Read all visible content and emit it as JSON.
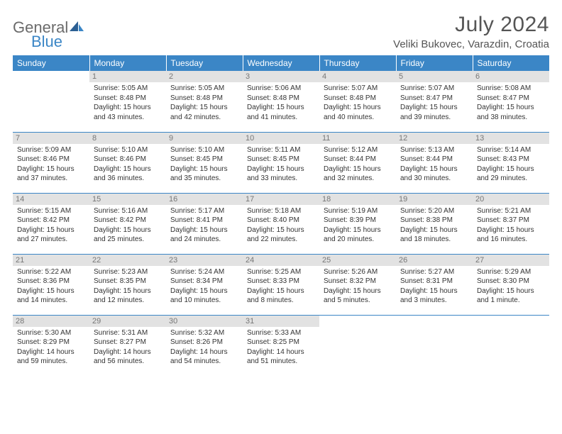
{
  "logo": {
    "text1": "General",
    "text2": "Blue"
  },
  "title": "July 2024",
  "location": "Veliki Bukovec, Varazdin, Croatia",
  "colors": {
    "header_bg": "#3b86c6",
    "header_text": "#ffffff",
    "daynum_bg": "#e2e2e2",
    "daynum_text": "#777777",
    "border": "#3b86c6",
    "logo_gray": "#6b6b6b",
    "logo_blue": "#3b86c6",
    "body_text": "#333333"
  },
  "weekdays": [
    "Sunday",
    "Monday",
    "Tuesday",
    "Wednesday",
    "Thursday",
    "Friday",
    "Saturday"
  ],
  "days": [
    {
      "n": "",
      "sr": "",
      "ss": "",
      "dl": ""
    },
    {
      "n": "1",
      "sr": "5:05 AM",
      "ss": "8:48 PM",
      "dl": "15 hours and 43 minutes."
    },
    {
      "n": "2",
      "sr": "5:05 AM",
      "ss": "8:48 PM",
      "dl": "15 hours and 42 minutes."
    },
    {
      "n": "3",
      "sr": "5:06 AM",
      "ss": "8:48 PM",
      "dl": "15 hours and 41 minutes."
    },
    {
      "n": "4",
      "sr": "5:07 AM",
      "ss": "8:48 PM",
      "dl": "15 hours and 40 minutes."
    },
    {
      "n": "5",
      "sr": "5:07 AM",
      "ss": "8:47 PM",
      "dl": "15 hours and 39 minutes."
    },
    {
      "n": "6",
      "sr": "5:08 AM",
      "ss": "8:47 PM",
      "dl": "15 hours and 38 minutes."
    },
    {
      "n": "7",
      "sr": "5:09 AM",
      "ss": "8:46 PM",
      "dl": "15 hours and 37 minutes."
    },
    {
      "n": "8",
      "sr": "5:10 AM",
      "ss": "8:46 PM",
      "dl": "15 hours and 36 minutes."
    },
    {
      "n": "9",
      "sr": "5:10 AM",
      "ss": "8:45 PM",
      "dl": "15 hours and 35 minutes."
    },
    {
      "n": "10",
      "sr": "5:11 AM",
      "ss": "8:45 PM",
      "dl": "15 hours and 33 minutes."
    },
    {
      "n": "11",
      "sr": "5:12 AM",
      "ss": "8:44 PM",
      "dl": "15 hours and 32 minutes."
    },
    {
      "n": "12",
      "sr": "5:13 AM",
      "ss": "8:44 PM",
      "dl": "15 hours and 30 minutes."
    },
    {
      "n": "13",
      "sr": "5:14 AM",
      "ss": "8:43 PM",
      "dl": "15 hours and 29 minutes."
    },
    {
      "n": "14",
      "sr": "5:15 AM",
      "ss": "8:42 PM",
      "dl": "15 hours and 27 minutes."
    },
    {
      "n": "15",
      "sr": "5:16 AM",
      "ss": "8:42 PM",
      "dl": "15 hours and 25 minutes."
    },
    {
      "n": "16",
      "sr": "5:17 AM",
      "ss": "8:41 PM",
      "dl": "15 hours and 24 minutes."
    },
    {
      "n": "17",
      "sr": "5:18 AM",
      "ss": "8:40 PM",
      "dl": "15 hours and 22 minutes."
    },
    {
      "n": "18",
      "sr": "5:19 AM",
      "ss": "8:39 PM",
      "dl": "15 hours and 20 minutes."
    },
    {
      "n": "19",
      "sr": "5:20 AM",
      "ss": "8:38 PM",
      "dl": "15 hours and 18 minutes."
    },
    {
      "n": "20",
      "sr": "5:21 AM",
      "ss": "8:37 PM",
      "dl": "15 hours and 16 minutes."
    },
    {
      "n": "21",
      "sr": "5:22 AM",
      "ss": "8:36 PM",
      "dl": "15 hours and 14 minutes."
    },
    {
      "n": "22",
      "sr": "5:23 AM",
      "ss": "8:35 PM",
      "dl": "15 hours and 12 minutes."
    },
    {
      "n": "23",
      "sr": "5:24 AM",
      "ss": "8:34 PM",
      "dl": "15 hours and 10 minutes."
    },
    {
      "n": "24",
      "sr": "5:25 AM",
      "ss": "8:33 PM",
      "dl": "15 hours and 8 minutes."
    },
    {
      "n": "25",
      "sr": "5:26 AM",
      "ss": "8:32 PM",
      "dl": "15 hours and 5 minutes."
    },
    {
      "n": "26",
      "sr": "5:27 AM",
      "ss": "8:31 PM",
      "dl": "15 hours and 3 minutes."
    },
    {
      "n": "27",
      "sr": "5:29 AM",
      "ss": "8:30 PM",
      "dl": "15 hours and 1 minute."
    },
    {
      "n": "28",
      "sr": "5:30 AM",
      "ss": "8:29 PM",
      "dl": "14 hours and 59 minutes."
    },
    {
      "n": "29",
      "sr": "5:31 AM",
      "ss": "8:27 PM",
      "dl": "14 hours and 56 minutes."
    },
    {
      "n": "30",
      "sr": "5:32 AM",
      "ss": "8:26 PM",
      "dl": "14 hours and 54 minutes."
    },
    {
      "n": "31",
      "sr": "5:33 AM",
      "ss": "8:25 PM",
      "dl": "14 hours and 51 minutes."
    },
    {
      "n": "",
      "sr": "",
      "ss": "",
      "dl": ""
    },
    {
      "n": "",
      "sr": "",
      "ss": "",
      "dl": ""
    },
    {
      "n": "",
      "sr": "",
      "ss": "",
      "dl": ""
    }
  ],
  "labels": {
    "sunrise": "Sunrise: ",
    "sunset": "Sunset: ",
    "daylight": "Daylight: "
  }
}
